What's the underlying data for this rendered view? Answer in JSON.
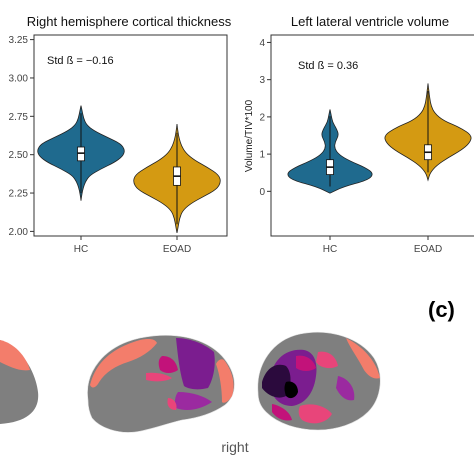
{
  "chart_data": [
    {
      "type": "violin",
      "title": "Right hemisphere cortical thickness",
      "ylabel": "",
      "categories": [
        "HC",
        "EOAD"
      ],
      "ylim": [
        1.97,
        3.28
      ],
      "yticks": [
        "2.00",
        "2.25",
        "2.50",
        "2.75",
        "3.00",
        "3.25"
      ],
      "annotation": "Std ß = −0.16",
      "series": [
        {
          "values": {
            "min": 2.2,
            "q1": 2.46,
            "median": 2.51,
            "q3": 2.55,
            "max": 2.82
          }
        },
        {
          "values": {
            "min": 1.99,
            "q1": 2.3,
            "median": 2.36,
            "q3": 2.42,
            "max": 2.7
          }
        }
      ],
      "colors": [
        "#1f6a8e",
        "#d49a12"
      ],
      "grid": false
    },
    {
      "type": "violin",
      "title": "Left lateral ventricle volume",
      "ylabel": "Volume/TIV*100",
      "categories": [
        "HC",
        "EOAD"
      ],
      "ylim": [
        -1.2,
        4.2
      ],
      "yticks": [
        "0",
        "1",
        "2",
        "3",
        "4"
      ],
      "annotation": "Std ß = 0.36",
      "series": [
        {
          "values": {
            "min": -0.05,
            "q1": 0.45,
            "median": 0.65,
            "q3": 0.85,
            "max": 2.2
          }
        },
        {
          "values": {
            "min": 0.3,
            "q1": 0.85,
            "median": 1.05,
            "q3": 1.25,
            "max": 2.9
          }
        }
      ],
      "colors": [
        "#1f6a8e",
        "#d49a12"
      ],
      "grid": false
    }
  ],
  "panel_label": "(c)",
  "brain_caption": "right",
  "brain_colors": {
    "gray": "#7f7f7f",
    "salmon": "#f37d6b",
    "magenta": "#c2127a",
    "purple": "#7b1d8f",
    "pink": "#e8457a",
    "dark": "#2b0a3d"
  }
}
